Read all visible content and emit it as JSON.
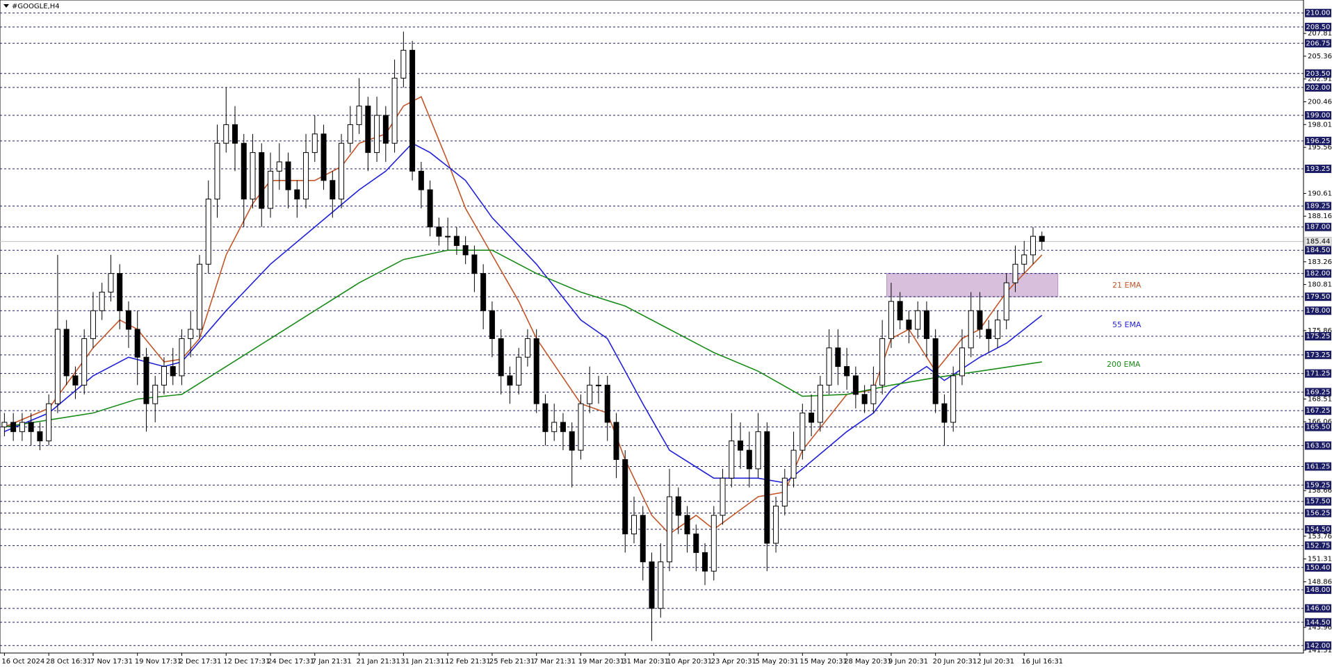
{
  "chart_data": {
    "type": "candlestick",
    "title": "#GOOGLE,H4",
    "open": [
      165.5,
      166,
      165,
      166,
      165,
      164,
      168,
      176,
      171,
      170,
      175,
      178,
      180,
      182,
      178,
      176,
      173,
      168,
      170,
      172,
      171,
      175,
      176,
      183,
      190,
      196,
      198,
      196,
      190,
      195,
      189,
      193,
      194,
      191,
      190,
      195,
      197,
      192,
      190,
      196,
      198,
      200,
      195,
      199,
      196,
      203,
      206,
      193,
      191,
      187,
      186,
      186,
      185,
      184,
      182,
      178,
      175,
      171,
      170,
      173,
      175,
      168,
      165,
      166,
      165,
      163,
      168,
      170,
      170,
      166,
      162,
      154,
      156,
      151,
      146,
      151,
      158,
      156,
      154,
      152,
      150,
      156,
      160,
      164,
      163,
      161,
      165,
      153,
      157,
      160,
      163,
      167,
      166,
      170,
      174,
      172,
      171,
      169,
      168,
      170,
      175,
      179,
      177,
      176,
      178,
      175,
      168,
      166,
      171,
      174,
      178,
      176,
      175,
      177,
      181,
      183,
      184,
      186
    ],
    "high": [
      167,
      167,
      167,
      167,
      166,
      169,
      184,
      177,
      172,
      176,
      180,
      181,
      184,
      183,
      179,
      178,
      174,
      171,
      173,
      174,
      176,
      178,
      184,
      192,
      198,
      202,
      200,
      197,
      197,
      196,
      195,
      196,
      195,
      192,
      197,
      199,
      198,
      193,
      197,
      200,
      203,
      201,
      201,
      200,
      205,
      208,
      207,
      194,
      192,
      188,
      188,
      187,
      186,
      185,
      183,
      179,
      176,
      172,
      174,
      176,
      176,
      169,
      168,
      167,
      166,
      169,
      172,
      171,
      171,
      167,
      163,
      158,
      157,
      152,
      153,
      161,
      159,
      157,
      155,
      153,
      157,
      161,
      167,
      166,
      165,
      167,
      166,
      158,
      161,
      165,
      168,
      169,
      171,
      176,
      176,
      174,
      172,
      170,
      172,
      177,
      181,
      180,
      178,
      179,
      179,
      176,
      169,
      172,
      176,
      180,
      180,
      177,
      178,
      182,
      185,
      185.5,
      187,
      186.5
    ],
    "low": [
      164.5,
      164,
      164,
      163.5,
      163,
      163.5,
      167,
      170,
      168.5,
      169,
      174,
      177,
      179,
      176,
      174,
      170,
      165,
      166,
      169,
      170,
      170,
      173,
      175,
      182,
      188,
      195,
      193,
      187,
      189,
      187,
      188,
      191,
      189,
      188,
      189,
      194,
      191,
      188,
      189,
      195,
      197,
      193,
      194,
      194,
      195,
      202,
      192,
      189,
      186,
      185,
      184.5,
      184,
      183,
      180,
      176,
      173,
      169,
      168,
      169,
      172,
      167,
      163.5,
      164,
      163,
      159,
      162,
      167,
      168,
      164,
      160,
      152,
      153,
      149,
      142.5,
      145,
      150,
      154,
      152,
      150,
      148.5,
      149,
      155,
      159,
      161,
      159,
      160,
      150,
      152,
      156,
      159,
      162,
      164.5,
      165,
      169,
      170,
      169.5,
      167.5,
      167,
      167,
      169,
      174,
      176,
      174.5,
      175,
      173,
      167,
      163.5,
      165,
      170,
      173,
      175,
      173.5,
      174,
      176,
      180,
      182,
      183,
      184.5
    ],
    "close": [
      166,
      165,
      166,
      165,
      164,
      168,
      176,
      171,
      170,
      175,
      178,
      180,
      182,
      178,
      176,
      173,
      168,
      170,
      172,
      171,
      175,
      176,
      183,
      190,
      196,
      198,
      196,
      190,
      195,
      189,
      193,
      194,
      191,
      190,
      195,
      197,
      192,
      190,
      196,
      198,
      200,
      195,
      199,
      196,
      203,
      206,
      193,
      191,
      187,
      186,
      186,
      185,
      184,
      182,
      178,
      175,
      171,
      170,
      173,
      175,
      168,
      165,
      166,
      165,
      163,
      168,
      170,
      170,
      166,
      162,
      154,
      156,
      151,
      146,
      151,
      158,
      156,
      154,
      152,
      150,
      156,
      160,
      164,
      163,
      161,
      165,
      153,
      157,
      160,
      163,
      167,
      166,
      170,
      174,
      172,
      171,
      169,
      168,
      170,
      175,
      179,
      177,
      176,
      178,
      175,
      168,
      166,
      171,
      174,
      178,
      176,
      175,
      177,
      181,
      183,
      184,
      186,
      185.44
    ],
    "xlim": [
      -0.5,
      146.5
    ],
    "xticks": [
      {
        "value": 0,
        "label": "16 Oct 2024"
      },
      {
        "value": 5,
        "label": "28 Oct 16:31"
      },
      {
        "value": 10,
        "label": "7 Nov 17:31"
      },
      {
        "value": 15,
        "label": "19 Nov 17:31"
      },
      {
        "value": 20,
        "label": "2 Dec 17:31"
      },
      {
        "value": 25,
        "label": "12 Dec 17:31"
      },
      {
        "value": 30,
        "label": "24 Dec 17:31"
      },
      {
        "value": 35,
        "label": "7 Jan 21:31"
      },
      {
        "value": 40,
        "label": "21 Jan 21:31"
      },
      {
        "value": 45,
        "label": "31 Jan 21:31"
      },
      {
        "value": 50,
        "label": "12 Feb 21:31"
      },
      {
        "value": 55,
        "label": "25 Feb 21:31"
      },
      {
        "value": 60,
        "label": "7 Mar 21:31"
      },
      {
        "value": 65,
        "label": "19 Mar 20:31"
      },
      {
        "value": 70,
        "label": "31 Mar 20:31"
      },
      {
        "value": 75,
        "label": "10 Apr 20:31"
      },
      {
        "value": 80,
        "label": "23 Apr 20:31"
      },
      {
        "value": 85,
        "label": "5 May 20:31"
      },
      {
        "value": 90,
        "label": "15 May 20:31"
      },
      {
        "value": 95,
        "label": "28 May 20:31"
      },
      {
        "value": 100,
        "label": "9 Jun 20:31"
      },
      {
        "value": 105,
        "label": "20 Jun 20:31"
      },
      {
        "value": 110,
        "label": "2 Jul 20:31"
      },
      {
        "value": 115,
        "label": "16 Jul 16:31"
      }
    ],
    "ylim": [
      141.2,
      211.4
    ],
    "yticks": [
      207.81,
      205.36,
      202.91,
      200.46,
      198.01,
      195.56,
      190.61,
      188.16,
      183.26,
      180.81,
      175.86,
      168.51,
      166.06,
      158.66,
      153.76,
      151.31,
      148.86,
      143.96,
      141.51
    ],
    "levels": [
      {
        "value": 210,
        "label": "210.00"
      },
      {
        "value": 208.5,
        "label": "208.50"
      },
      {
        "value": 206.75,
        "label": "206.75"
      },
      {
        "value": 203.5,
        "label": "203.50"
      },
      {
        "value": 202,
        "label": "202.00"
      },
      {
        "value": 199,
        "label": "199.00"
      },
      {
        "value": 196.25,
        "label": "196.25"
      },
      {
        "value": 193.25,
        "label": "193.25"
      },
      {
        "value": 189.25,
        "label": "189.25"
      },
      {
        "value": 187,
        "label": "187.00"
      },
      {
        "value": 184.5,
        "label": "184.50"
      },
      {
        "value": 182,
        "label": "182.00"
      },
      {
        "value": 179.5,
        "label": "179.50"
      },
      {
        "value": 178,
        "label": "178.00"
      },
      {
        "value": 175.25,
        "label": "175.25"
      },
      {
        "value": 173.25,
        "label": "173.25"
      },
      {
        "value": 171.25,
        "label": "171.25"
      },
      {
        "value": 169.25,
        "label": "169.25"
      },
      {
        "value": 167.25,
        "label": "167.25"
      },
      {
        "value": 165.5,
        "label": "165.50"
      },
      {
        "value": 163.5,
        "label": "163.50"
      },
      {
        "value": 161.25,
        "label": "161.25"
      },
      {
        "value": 159.25,
        "label": "159.25"
      },
      {
        "value": 157.5,
        "label": "157.50"
      },
      {
        "value": 156.25,
        "label": "156.25"
      },
      {
        "value": 154.5,
        "label": "154.50"
      },
      {
        "value": 152.75,
        "label": "152.75"
      },
      {
        "value": 150.4,
        "label": "150.40"
      },
      {
        "value": 148,
        "label": "148.00"
      },
      {
        "value": 146,
        "label": "146.00"
      },
      {
        "value": 144.5,
        "label": "144.50"
      },
      {
        "value": 142,
        "label": "142.00"
      }
    ],
    "levels_color": "#1c1c64",
    "current_price": 185.44,
    "zone": {
      "x": [
        99.5,
        118.8
      ],
      "y": [
        179.5,
        182
      ],
      "color": "#d8bfdc"
    },
    "series": [
      {
        "name": "21 EMA",
        "color": "#c0562a",
        "x": [
          0,
          5,
          10,
          13,
          15,
          18,
          20,
          22,
          25,
          28,
          30,
          35,
          38,
          40,
          43,
          45,
          47,
          50,
          52,
          55,
          58,
          60,
          65,
          68,
          70,
          73,
          75,
          78,
          80,
          85,
          88,
          90,
          95,
          98,
          100,
          102,
          105,
          108,
          110,
          113,
          117
        ],
        "values": [
          165.5,
          167.5,
          174,
          177,
          176,
          172.5,
          172.8,
          175,
          184,
          189.5,
          192,
          192,
          193.5,
          196,
          197,
          200,
          201,
          194,
          189,
          184,
          179,
          175,
          168,
          167,
          162,
          156,
          154,
          156,
          154.5,
          158,
          158.5,
          163,
          169,
          169.5,
          175,
          176,
          171.5,
          175,
          176,
          180,
          184
        ]
      },
      {
        "name": "55 EMA",
        "color": "#1f1fd6",
        "x": [
          0,
          5,
          10,
          14,
          18,
          20,
          25,
          30,
          35,
          40,
          43,
          46,
          48,
          52,
          55,
          60,
          65,
          68,
          72,
          75,
          80,
          85,
          88,
          90,
          95,
          98,
          100,
          104,
          106,
          110,
          113,
          117
        ],
        "values": [
          165,
          167,
          171,
          173,
          172,
          172.5,
          178,
          183,
          187,
          191,
          193,
          196,
          195,
          192,
          188,
          183,
          177,
          175,
          168,
          163,
          160,
          160,
          159.5,
          161,
          165,
          167,
          169.5,
          172,
          170.5,
          173,
          174.5,
          177.5
        ]
      },
      {
        "name": "200 EMA",
        "color": "#1a8a1a",
        "x": [
          0,
          10,
          15,
          20,
          25,
          30,
          35,
          40,
          45,
          50,
          55,
          60,
          65,
          70,
          75,
          80,
          85,
          90,
          95,
          100,
          105,
          110,
          117
        ],
        "values": [
          165.5,
          167,
          168.5,
          169,
          172,
          175,
          178,
          181,
          183.5,
          184.5,
          184.5,
          182,
          180,
          178.5,
          176,
          173.5,
          171.5,
          168.8,
          169,
          170,
          170.8,
          171.5,
          172.5
        ]
      }
    ]
  }
}
